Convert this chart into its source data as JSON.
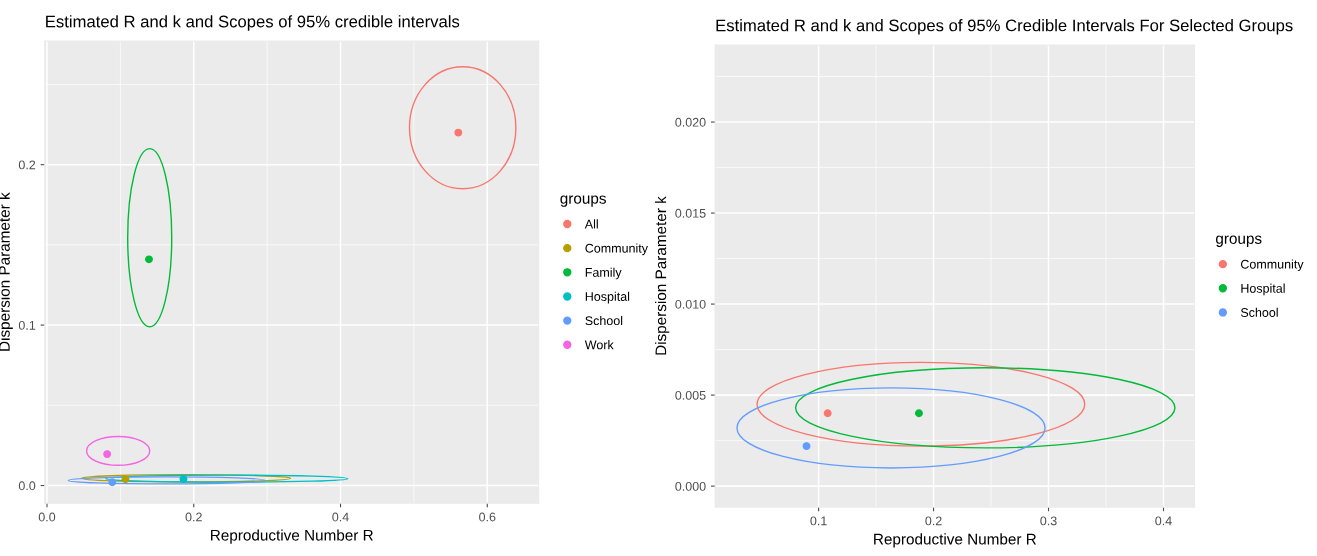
{
  "chart_data": [
    {
      "type": "scatter",
      "title": "Estimated R and k and Scopes of 95% credible intervals",
      "xlabel": "Reproductive Number R",
      "ylabel": "Dispersion Parameter k",
      "legend_title": "groups",
      "legend": "right",
      "grid": true,
      "marker": "circle",
      "xlim": [
        -0.003,
        0.67
      ],
      "ylim": [
        -0.011,
        0.277
      ],
      "xticks": [
        {
          "value": 0,
          "label": "0.0"
        },
        {
          "value": 0.2,
          "label": "0.2"
        },
        {
          "value": 0.4,
          "label": "0.4"
        },
        {
          "value": 0.6,
          "label": "0.6"
        }
      ],
      "yticks": [
        {
          "value": 0,
          "label": "0.0"
        },
        {
          "value": 0.1,
          "label": "0.1"
        },
        {
          "value": 0.2,
          "label": "0.2"
        }
      ],
      "series": [
        {
          "name": "All",
          "color": "#f8766d",
          "x": [
            0.5605
          ],
          "values": [
            0.22
          ]
        },
        {
          "name": "Community",
          "color": "#b79f00",
          "x": [
            0.107
          ],
          "values": [
            0.004
          ]
        },
        {
          "name": "Family",
          "color": "#00ba38",
          "x": [
            0.139
          ],
          "values": [
            0.141
          ]
        },
        {
          "name": "Hospital",
          "color": "#00bfc4",
          "x": [
            0.186
          ],
          "values": [
            0.004
          ]
        },
        {
          "name": "School",
          "color": "#619cff",
          "x": [
            0.089
          ],
          "values": [
            0.002
          ]
        },
        {
          "name": "Work",
          "color": "#f564e3",
          "x": [
            0.082
          ],
          "values": [
            0.0196
          ]
        }
      ]
    },
    {
      "type": "scatter",
      "title": "Estimated R and k and Scopes of 95% Credible Intervals For Selected Groups",
      "xlabel": "Reproductive Number R",
      "ylabel": "Dispersion Parameter k",
      "legend_title": "groups",
      "legend": "right",
      "grid": true,
      "marker": "circle",
      "xlim": [
        0.01,
        0.427
      ],
      "ylim": [
        -0.00115,
        0.02423
      ],
      "xticks": [
        0.1,
        0.2,
        0.3,
        0.4
      ],
      "yticks": [
        {
          "value": 0,
          "label": "0.000"
        },
        {
          "value": 0.005,
          "label": "0.005"
        },
        {
          "value": 0.01,
          "label": "0.010"
        },
        {
          "value": 0.015,
          "label": "0.015"
        },
        {
          "value": 0.02,
          "label": "0.020"
        }
      ],
      "series": [
        {
          "name": "Community",
          "color": "#f8766d",
          "x": [
            0.1079
          ],
          "values": [
            0.004
          ]
        },
        {
          "name": "Hospital",
          "color": "#00ba38",
          "x": [
            0.1873
          ],
          "values": [
            0.004
          ]
        },
        {
          "name": "School",
          "color": "#619cff",
          "x": [
            0.0895
          ],
          "values": [
            0.0022
          ]
        }
      ]
    }
  ]
}
